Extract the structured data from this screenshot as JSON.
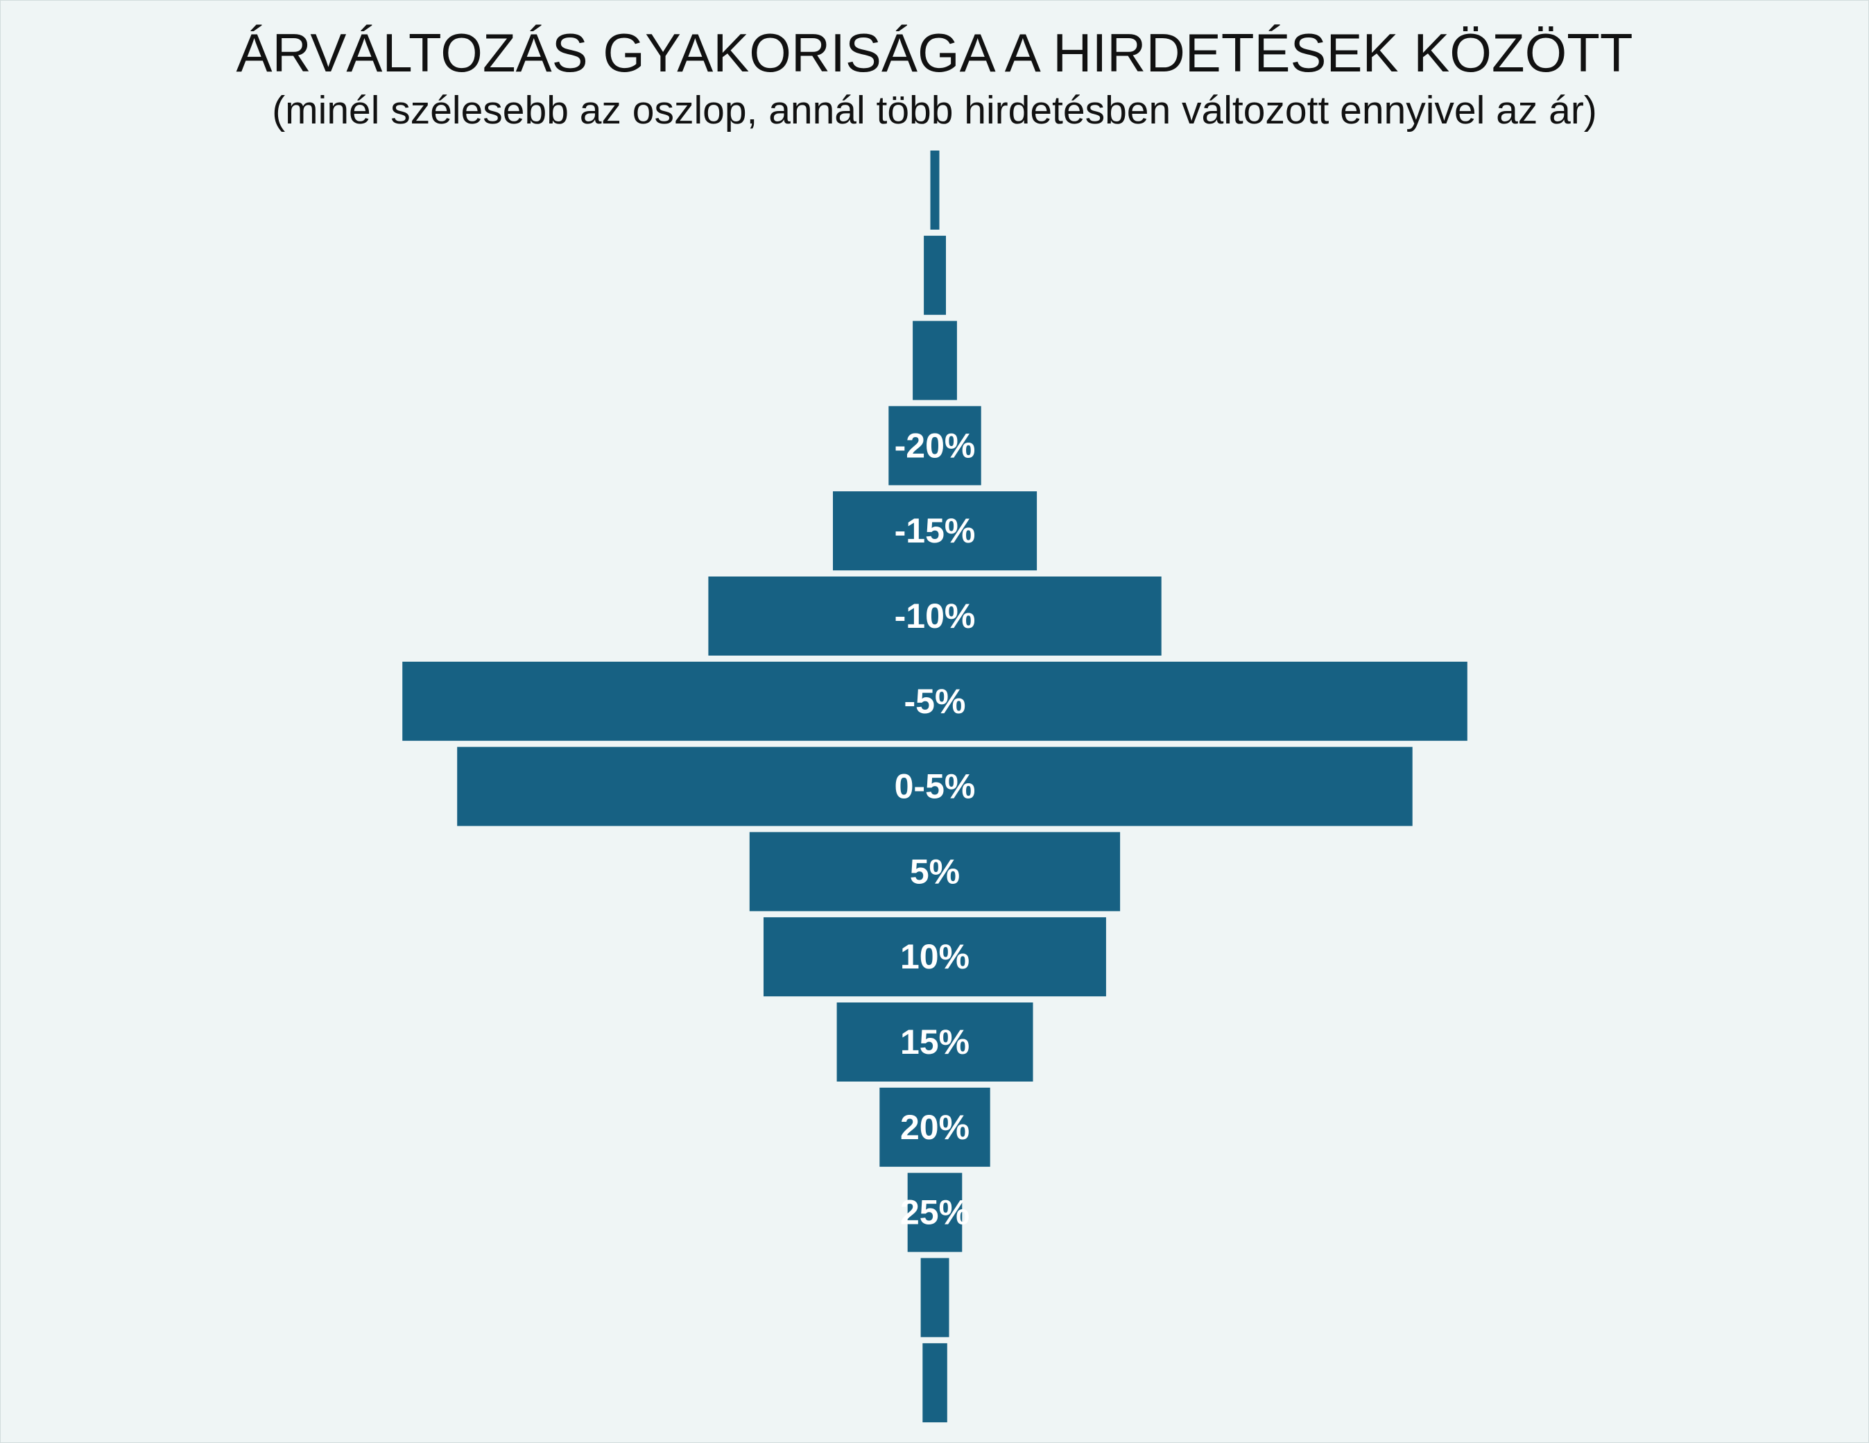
{
  "chart_data": {
    "type": "bar",
    "title": "ÁRVÁLTOZÁS GYAKORISÁGA A HIRDETÉSEK KÖZÖTT",
    "subtitle": "(minél szélesebb az oszlop, annál több hirdetésben változott ennyivel az ár)",
    "orientation": "horizontal-centered",
    "categories": [
      "",
      "",
      "",
      "-20%",
      "-15%",
      "-10%",
      "-5%",
      "0-5%",
      "5%",
      "10%",
      "15%",
      "20%",
      "25%",
      "",
      ""
    ],
    "values": [
      2.9,
      7.1,
      14.2,
      29.7,
      65.5,
      145.5,
      342.0,
      306.8,
      119.0,
      110.0,
      63.0,
      35.5,
      17.5,
      9.1,
      7.9
    ],
    "xlabel": "",
    "ylabel": "",
    "grid": false,
    "legend": "none",
    "colors": {
      "bar": "#176183",
      "label": "#ffffff",
      "background": "#eff5f5"
    }
  }
}
